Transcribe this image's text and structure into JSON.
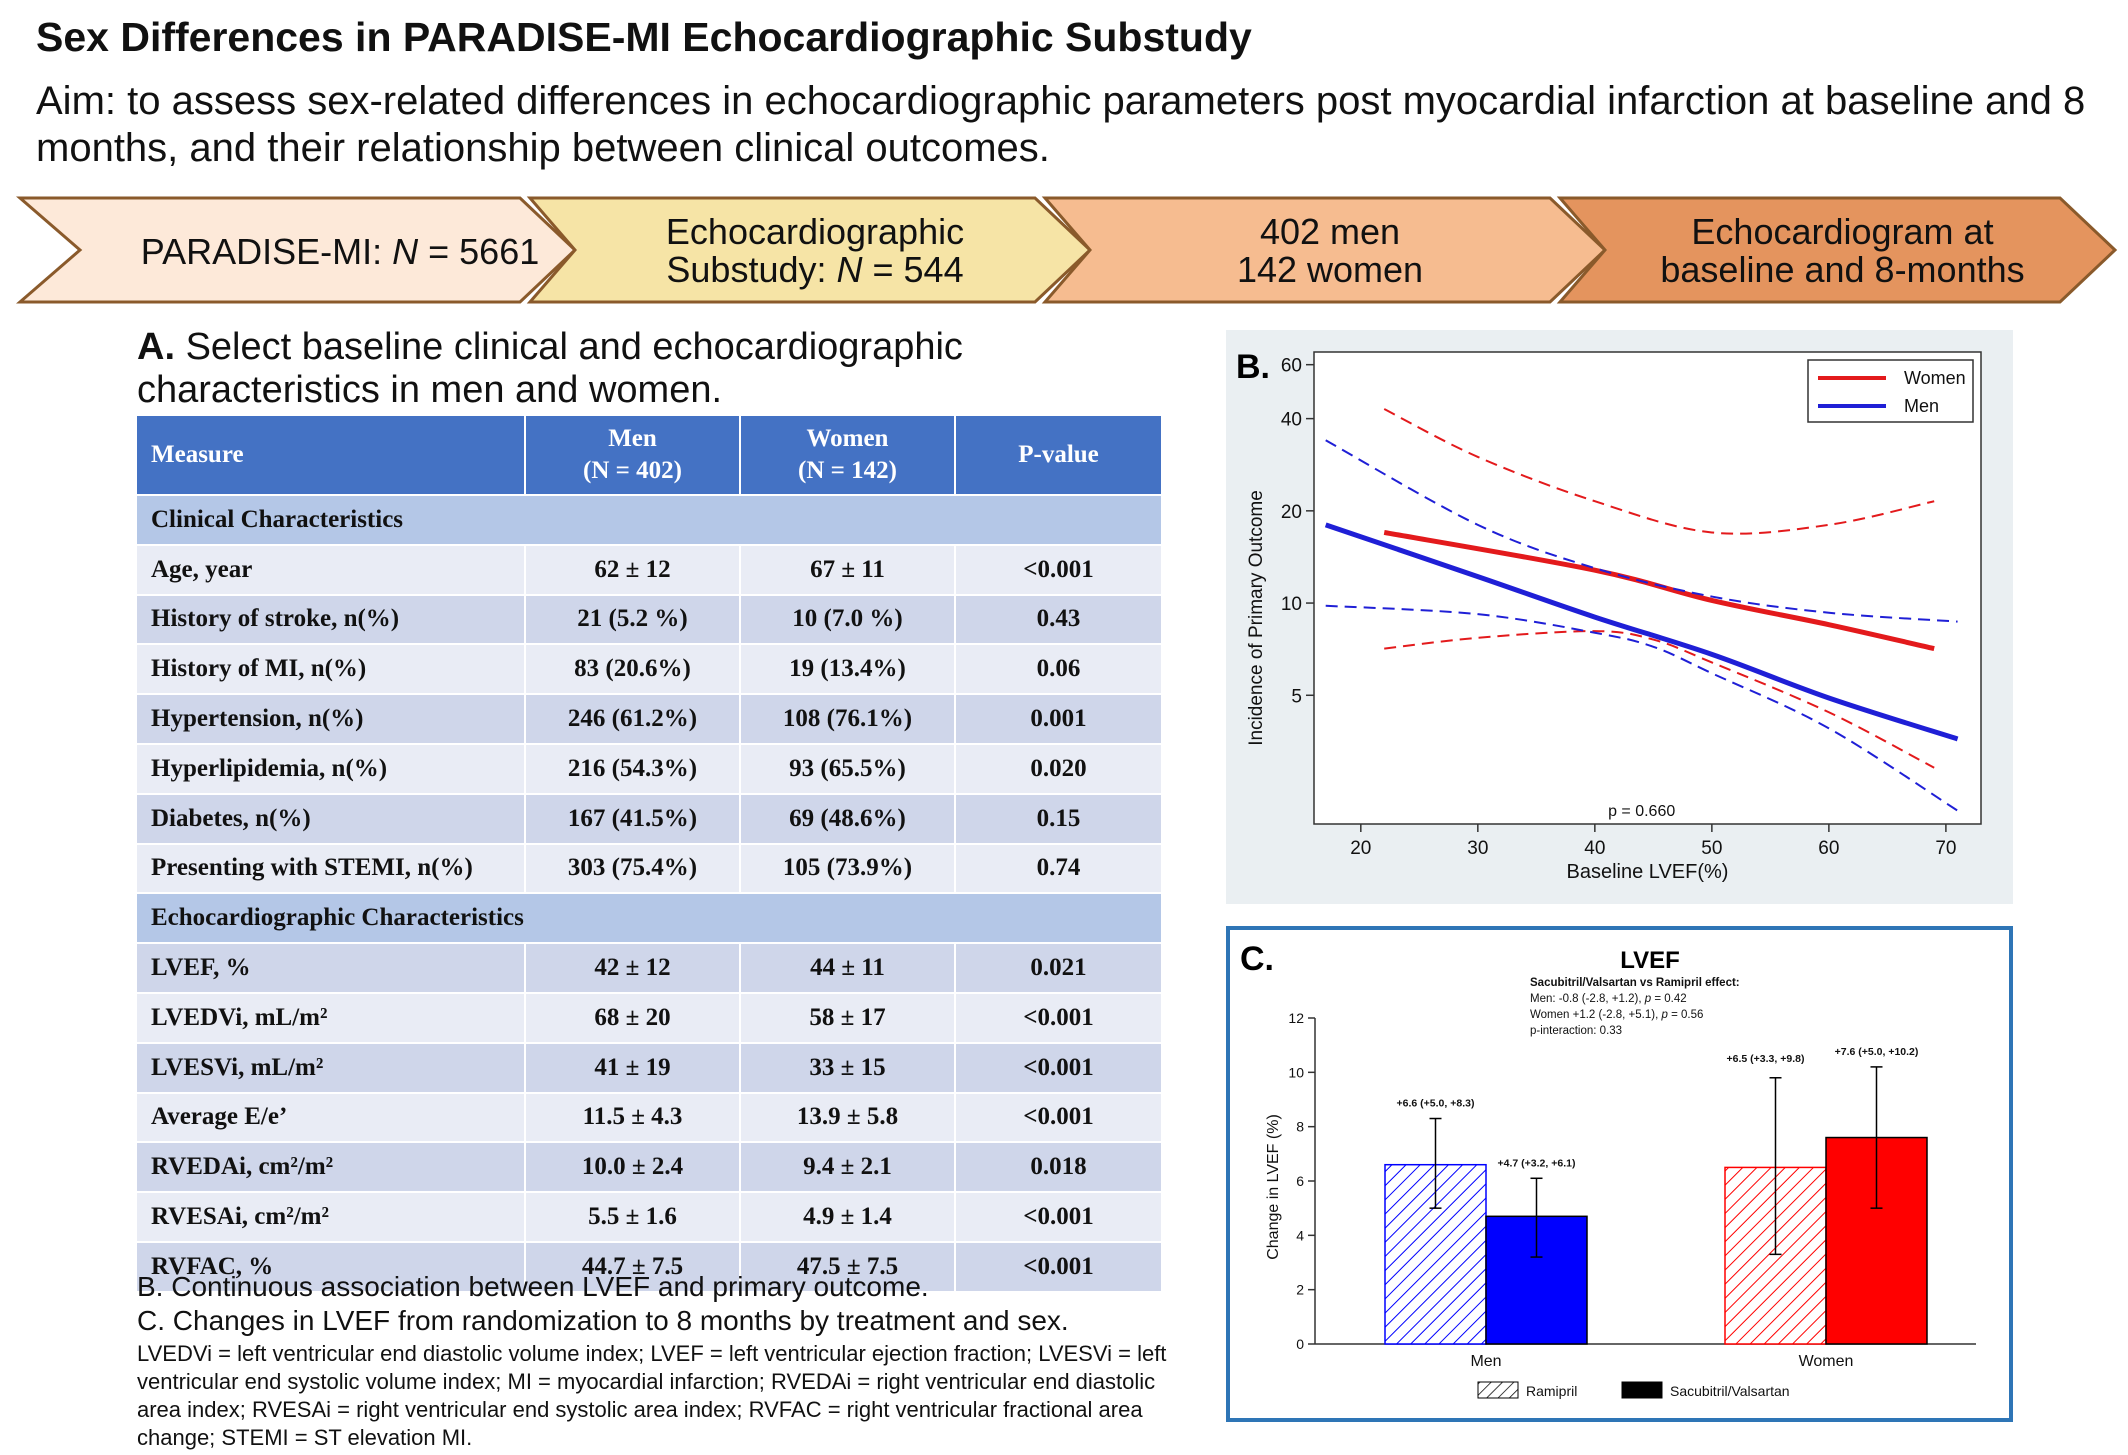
{
  "header": {
    "title": "Sex Differences in PARADISE-MI Echocardiographic Substudy",
    "aim": "Aim: to assess sex-related differences in echocardiographic parameters post myocardial infarction at baseline and 8 months, and their relationship between clinical outcomes."
  },
  "flow": [
    {
      "lines": [
        "PARADISE-MI: N = 5661"
      ],
      "color": "#fde9d9"
    },
    {
      "lines": [
        "Echocardiographic",
        "Substudy: N = 544"
      ],
      "color": "#f6e4a6"
    },
    {
      "lines": [
        "402 men",
        "142 women"
      ],
      "color": "#f6bc90"
    },
    {
      "lines": [
        "Echocardiogram at",
        "baseline and 8-months"
      ],
      "color": "#e4945e"
    }
  ],
  "panelA": {
    "letter": "A.",
    "title": "Select baseline clinical and echocardiographic characteristics in men and women.",
    "headers": {
      "measure": "Measure",
      "men": "Men",
      "men_n": "(N = 402)",
      "women": "Women",
      "women_n": "(N = 142)",
      "p": "P-value"
    },
    "sections": [
      {
        "name": "Clinical Characteristics",
        "rows": [
          {
            "measure": "Age, year",
            "men": "62 ± 12",
            "women": "67 ± 11",
            "p": "<0.001"
          },
          {
            "measure": "History of stroke, n(%)",
            "men": "21 (5.2 %)",
            "women": "10 (7.0 %)",
            "p": "0.43"
          },
          {
            "measure": "History of MI, n(%)",
            "men": "83 (20.6%)",
            "women": "19 (13.4%)",
            "p": "0.06"
          },
          {
            "measure": "Hypertension, n(%)",
            "men": "246 (61.2%)",
            "women": "108 (76.1%)",
            "p": "0.001"
          },
          {
            "measure": "Hyperlipidemia, n(%)",
            "men": "216 (54.3%)",
            "women": "93 (65.5%)",
            "p": "0.020"
          },
          {
            "measure": "Diabetes, n(%)",
            "men": "167 (41.5%)",
            "women": "69 (48.6%)",
            "p": "0.15"
          },
          {
            "measure": "Presenting with STEMI, n(%)",
            "men": "303 (75.4%)",
            "women": "105 (73.9%)",
            "p": "0.74"
          }
        ]
      },
      {
        "name": "Echocardiographic Characteristics",
        "rows": [
          {
            "measure": "LVEF, %",
            "men": "42  ± 12",
            "women": "44  ± 11",
            "p": "0.021"
          },
          {
            "measure": "LVEDVi, mL/m²",
            "men": "68 ± 20",
            "women": "58 ± 17",
            "p": "<0.001"
          },
          {
            "measure": "LVESVi, mL/m²",
            "men": "41 ± 19",
            "women": "33 ± 15",
            "p": "<0.001"
          },
          {
            "measure": "Average E/e’",
            "men": "11.5 ± 4.3",
            "women": "13.9 ± 5.8",
            "p": "<0.001"
          },
          {
            "measure": "RVEDAi, cm²/m²",
            "men": "10.0 ± 2.4",
            "women": "9.4 ± 2.1",
            "p": "0.018"
          },
          {
            "measure": "RVESAi, cm²/m²",
            "men": "5.5 ± 1.6",
            "women": "4.9 ± 1.4",
            "p": "<0.001"
          },
          {
            "measure": "RVFAC, %",
            "men": "44.7 ± 7.5",
            "women": "47.5 ± 7.5",
            "p": "<0.001"
          }
        ]
      }
    ]
  },
  "notes": {
    "b": "B. Continuous association between LVEF and primary outcome.",
    "c": "C. Changes in LVEF from randomization to 8 months by treatment and sex.",
    "abbreviations": "LVEDVi = left ventricular end diastolic volume index; LVEF = left ventricular ejection fraction; LVESVi = left ventricular end systolic volume index; MI = myocardial infarction; RVEDAi = right ventricular end diastolic area index; RVESAi = right ventricular end systolic area index; RVFAC = right ventricular fractional area change; STEMI = ST elevation MI."
  },
  "chart_data": [
    {
      "panel": "B.",
      "type": "line",
      "xlabel": "Baseline LVEF(%)",
      "ylabel": "Incidence of Primary Outcome",
      "y_scale": "log",
      "xlim": [
        16,
        73
      ],
      "ylim": [
        1.9,
        66
      ],
      "x_ticks": [
        20,
        30,
        40,
        50,
        60,
        70
      ],
      "y_ticks": [
        5,
        10,
        20,
        40,
        60
      ],
      "legend": "top-right",
      "annotation": "p = 0.660",
      "series": [
        {
          "name": "Women",
          "color": "#e31a1c",
          "role": "estimate",
          "x": [
            22,
            40,
            50,
            60,
            69
          ],
          "y": [
            17,
            12.8,
            10.2,
            8.5,
            7.1
          ]
        },
        {
          "name": "Men",
          "color": "#1f1fd6",
          "role": "estimate",
          "x": [
            17,
            30,
            40,
            50,
            60,
            71
          ],
          "y": [
            18,
            12.2,
            9,
            6.8,
            4.9,
            3.6
          ]
        },
        {
          "color": "#e31a1c",
          "role": "upper-ci",
          "x": [
            22,
            30,
            40,
            50,
            60,
            69
          ],
          "y": [
            43,
            30,
            21.5,
            17,
            18,
            21.5
          ]
        },
        {
          "color": "#e31a1c",
          "role": "lower-ci",
          "x": [
            22,
            30,
            40,
            45,
            50,
            60,
            69
          ],
          "y": [
            7.1,
            7.7,
            8.1,
            7.6,
            6.4,
            4.4,
            2.9
          ]
        },
        {
          "color": "#1f1fd6",
          "role": "upper-ci",
          "x": [
            17,
            30,
            40,
            50,
            60,
            71
          ],
          "y": [
            34,
            18,
            13,
            10.5,
            9.3,
            8.7
          ]
        },
        {
          "color": "#1f1fd6",
          "role": "lower-ci",
          "x": [
            17,
            30,
            40,
            45,
            50,
            60,
            71
          ],
          "y": [
            9.8,
            9.2,
            8,
            7.2,
            5.9,
            3.9,
            2.1
          ]
        }
      ]
    },
    {
      "panel": "C.",
      "type": "bar",
      "title": "LVEF",
      "subtitle_lines": [
        "Sacubitril/Valsartan vs Ramipril effect:",
        "Men: -0.8 (-2.8, +1.2), p = 0.42",
        "Women +1.2 (-2.8, +5.1), p = 0.56",
        "p-interaction: 0.33"
      ],
      "ylabel": "Change in LVEF (%)",
      "ylim": [
        0,
        12
      ],
      "y_ticks": [
        0,
        2,
        4,
        6,
        8,
        10,
        12
      ],
      "categories": [
        "Men",
        "Women"
      ],
      "legend": "bottom",
      "series": [
        {
          "name": "Ramipril",
          "values": [
            6.6,
            6.5
          ],
          "ci_low": [
            5.0,
            3.3
          ],
          "ci_high": [
            8.3,
            9.8
          ],
          "labels": [
            "+6.6 (+5.0, +8.3)",
            "+6.5 (+3.3, +9.8)"
          ],
          "pattern": "hatched"
        },
        {
          "name": "Sacubitril/Valsartan",
          "values": [
            4.7,
            7.6
          ],
          "ci_low": [
            3.2,
            5.0
          ],
          "ci_high": [
            6.1,
            10.2
          ],
          "labels": [
            "+4.7 (+3.2, +6.1)",
            "+7.6 (+5.0, +10.2)"
          ],
          "pattern": "solid"
        }
      ],
      "colors": {
        "Men": "#0000ff",
        "Women": "#ff0000"
      }
    }
  ]
}
